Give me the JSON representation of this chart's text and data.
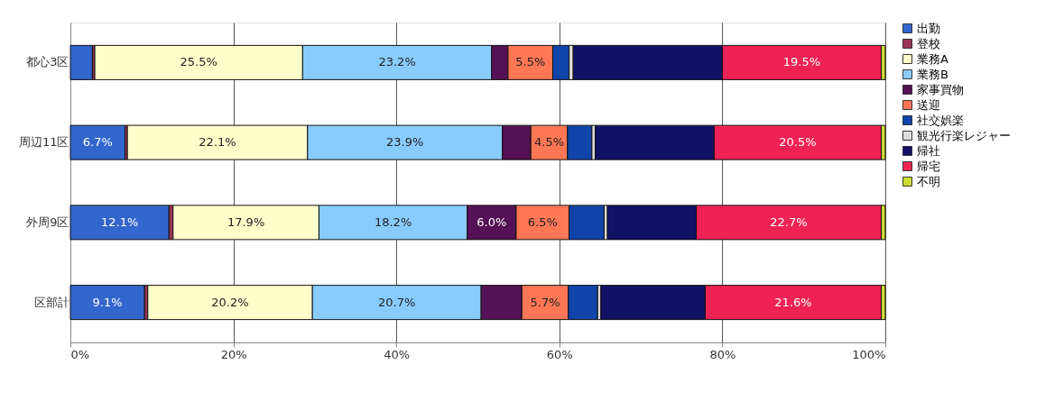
{
  "chart_data": {
    "type": "bar",
    "orientation": "horizontal",
    "stacked": true,
    "categories": [
      "都心3区",
      "周辺11区",
      "外周9区",
      "区部計"
    ],
    "series": [
      {
        "name": "出勤",
        "color": "#3366cc",
        "values": [
          2.7,
          6.7,
          12.1,
          9.1
        ],
        "value_labels": [
          null,
          "6.7%",
          "12.1%",
          "9.1%"
        ]
      },
      {
        "name": "登校",
        "color": "#993355",
        "values": [
          0.3,
          0.3,
          0.5,
          0.4
        ],
        "value_labels": [
          null,
          null,
          null,
          null
        ]
      },
      {
        "name": "業務A",
        "color": "#ffffcc",
        "values": [
          25.5,
          22.1,
          17.9,
          20.2
        ],
        "value_labels": [
          "25.5%",
          "22.1%",
          "17.9%",
          "20.2%"
        ]
      },
      {
        "name": "業務B",
        "color": "#88ccff",
        "values": [
          23.2,
          23.9,
          18.2,
          20.7
        ],
        "value_labels": [
          "23.2%",
          "23.9%",
          "18.2%",
          "20.7%"
        ]
      },
      {
        "name": "家事買物",
        "color": "#551155",
        "values": [
          2.0,
          3.5,
          6.0,
          5.0
        ],
        "value_labels": [
          null,
          null,
          "6.0%",
          null
        ]
      },
      {
        "name": "送迎",
        "color": "#ff7755",
        "values": [
          5.5,
          4.5,
          6.5,
          5.7
        ],
        "value_labels": [
          "5.5%",
          "4.5%",
          "6.5%",
          "5.7%"
        ]
      },
      {
        "name": "社交娯楽",
        "color": "#1144aa",
        "values": [
          2.0,
          3.0,
          4.3,
          3.6
        ],
        "value_labels": [
          null,
          null,
          null,
          null
        ]
      },
      {
        "name": "観光行楽レジャー",
        "color": "#dddddd",
        "values": [
          0.5,
          0.4,
          0.4,
          0.4
        ],
        "value_labels": [
          null,
          null,
          null,
          null
        ]
      },
      {
        "name": "帰社",
        "color": "#111166",
        "values": [
          18.3,
          14.6,
          10.9,
          12.8
        ],
        "value_labels": [
          null,
          null,
          null,
          null
        ]
      },
      {
        "name": "帰宅",
        "color": "#ee2255",
        "values": [
          19.5,
          20.5,
          22.7,
          21.6
        ],
        "value_labels": [
          "19.5%",
          "20.5%",
          "22.7%",
          "21.6%"
        ]
      },
      {
        "name": "不明",
        "color": "#ccdd33",
        "values": [
          0.5,
          0.5,
          0.5,
          0.5
        ],
        "value_labels": [
          null,
          null,
          null,
          null
        ]
      }
    ],
    "xlim": [
      0,
      100
    ],
    "xticks": [
      {
        "value": 0,
        "label": "0%"
      },
      {
        "value": 20,
        "label": "20%"
      },
      {
        "value": 40,
        "label": "40%"
      },
      {
        "value": 60,
        "label": "60%"
      },
      {
        "value": 80,
        "label": "80%"
      },
      {
        "value": 100,
        "label": "100%"
      }
    ],
    "grid": "x",
    "legend": "right"
  }
}
